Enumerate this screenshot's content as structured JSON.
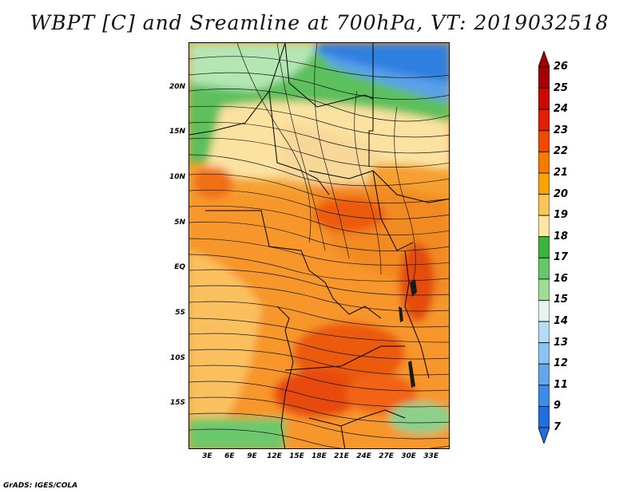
{
  "title": "WBPT [C] and Sreamline at 700hPa, VT: 2019032518",
  "map": {
    "lat_ticks": [
      "20N",
      "15N",
      "10N",
      "5N",
      "EQ",
      "5S",
      "10S",
      "15S"
    ],
    "lat_values": [
      20,
      15,
      10,
      5,
      0,
      -5,
      -10,
      -15
    ],
    "lon_ticks": [
      "3E",
      "6E",
      "9E",
      "12E",
      "15E",
      "18E",
      "21E",
      "24E",
      "27E",
      "30E",
      "33E"
    ],
    "lon_values": [
      3,
      6,
      9,
      12,
      15,
      18,
      21,
      24,
      27,
      30,
      33
    ],
    "lat_range": [
      -20,
      25
    ],
    "lon_range": [
      0.5,
      35.5
    ]
  },
  "colorbar": {
    "labels": [
      "26",
      "25",
      "24",
      "23",
      "22",
      "21",
      "20",
      "19",
      "18",
      "17",
      "16",
      "15",
      "14",
      "13",
      "12",
      "11",
      "9",
      "7"
    ],
    "colors": [
      "#a50000",
      "#c80a00",
      "#e02000",
      "#f04a00",
      "#f57a00",
      "#f7a300",
      "#fac65a",
      "#fde7a0",
      "#3cb43c",
      "#64c864",
      "#a0dc96",
      "#e6f5ee",
      "#b4dcf5",
      "#8cc3f0",
      "#64a5eb",
      "#3c8ce6",
      "#1e6edc"
    ]
  },
  "footer": {
    "credit": "GrADS: IGES/COLA"
  }
}
